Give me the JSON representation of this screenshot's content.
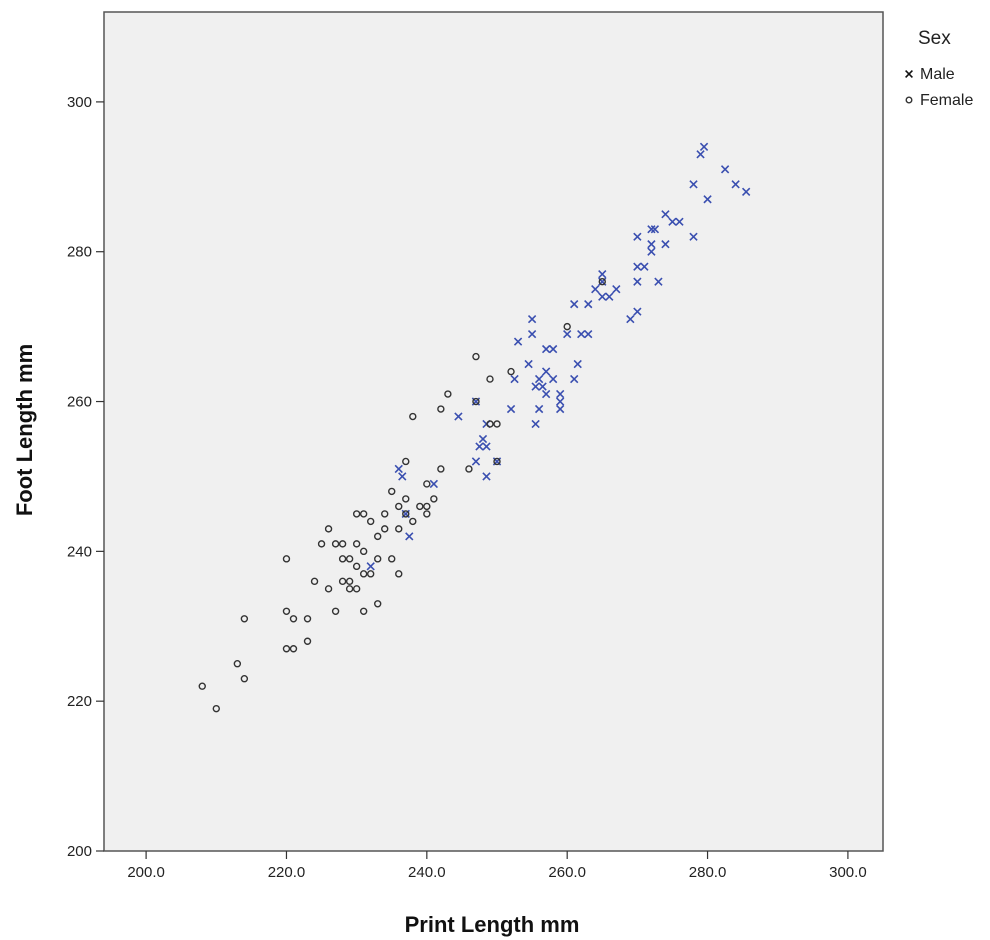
{
  "chart_data": {
    "type": "scatter",
    "xlabel": "Print Length mm",
    "ylabel": "Foot Length mm",
    "xlim": [
      194,
      305
    ],
    "ylim": [
      200,
      312
    ],
    "x_ticks": [
      200,
      220,
      240,
      260,
      280,
      300
    ],
    "x_tick_labels": [
      "200.0",
      "220.0",
      "240.0",
      "260.0",
      "280.0",
      "300.0"
    ],
    "y_ticks": [
      200,
      220,
      240,
      260,
      280,
      300
    ],
    "y_tick_labels": [
      "200",
      "220",
      "240",
      "260",
      "280",
      "300"
    ],
    "grid": false,
    "background_color": "#f0f0f0",
    "legend": {
      "title": "Sex",
      "position": "top-right, outside plot"
    },
    "series": [
      {
        "name": "Male",
        "marker": "x",
        "color": "#3a4fb0",
        "legend_color": "#111111",
        "points": [
          [
            279,
            293
          ],
          [
            279.5,
            294
          ],
          [
            282.5,
            291
          ],
          [
            284,
            289
          ],
          [
            285.5,
            288
          ],
          [
            280,
            287
          ],
          [
            278,
            289
          ],
          [
            274,
            285
          ],
          [
            275,
            284
          ],
          [
            276,
            284
          ],
          [
            272,
            283
          ],
          [
            272.5,
            283
          ],
          [
            270,
            282
          ],
          [
            274,
            281
          ],
          [
            272,
            281
          ],
          [
            272,
            280
          ],
          [
            278,
            282
          ],
          [
            270,
            278
          ],
          [
            271,
            278
          ],
          [
            270,
            276
          ],
          [
            273,
            276
          ],
          [
            265,
            277
          ],
          [
            265,
            276
          ],
          [
            264,
            275
          ],
          [
            267,
            275
          ],
          [
            266,
            274
          ],
          [
            265,
            274
          ],
          [
            261,
            273
          ],
          [
            263,
            273
          ],
          [
            270,
            272
          ],
          [
            269,
            271
          ],
          [
            260,
            269
          ],
          [
            262,
            269
          ],
          [
            263,
            269
          ],
          [
            255,
            271
          ],
          [
            255,
            269
          ],
          [
            253,
            268
          ],
          [
            257,
            267
          ],
          [
            258,
            267
          ],
          [
            254.5,
            265
          ],
          [
            261.5,
            265
          ],
          [
            257,
            264
          ],
          [
            252.5,
            263
          ],
          [
            256,
            263
          ],
          [
            258,
            263
          ],
          [
            261,
            263
          ],
          [
            255.5,
            262
          ],
          [
            256.5,
            262
          ],
          [
            257,
            261
          ],
          [
            259,
            261
          ],
          [
            259,
            260
          ],
          [
            252,
            259
          ],
          [
            256,
            259
          ],
          [
            259,
            259
          ],
          [
            255.5,
            257
          ],
          [
            247,
            260
          ],
          [
            244.5,
            258
          ],
          [
            248.5,
            257
          ],
          [
            248,
            255
          ],
          [
            247.5,
            254
          ],
          [
            248.5,
            254
          ],
          [
            247,
            252
          ],
          [
            248.5,
            250
          ],
          [
            250,
            252
          ],
          [
            236,
            251
          ],
          [
            236.5,
            250
          ],
          [
            241,
            249
          ],
          [
            237,
            245
          ],
          [
            237.5,
            242
          ],
          [
            232,
            238
          ]
        ]
      },
      {
        "name": "Female",
        "marker": "circle",
        "color": "#333333",
        "legend_color": "#333333",
        "points": [
          [
            265,
            276
          ],
          [
            260,
            270
          ],
          [
            247,
            266
          ],
          [
            252,
            264
          ],
          [
            249,
            263
          ],
          [
            243,
            261
          ],
          [
            247,
            260
          ],
          [
            242,
            259
          ],
          [
            238,
            258
          ],
          [
            249,
            257
          ],
          [
            250,
            257
          ],
          [
            250,
            252
          ],
          [
            237,
            252
          ],
          [
            246,
            251
          ],
          [
            242,
            251
          ],
          [
            235,
            248
          ],
          [
            240,
            249
          ],
          [
            241,
            247
          ],
          [
            237,
            247
          ],
          [
            240,
            246
          ],
          [
            239,
            246
          ],
          [
            240,
            245
          ],
          [
            236,
            246
          ],
          [
            230,
            245
          ],
          [
            231,
            245
          ],
          [
            234,
            245
          ],
          [
            237,
            245
          ],
          [
            238,
            244
          ],
          [
            232,
            244
          ],
          [
            236,
            243
          ],
          [
            234,
            243
          ],
          [
            226,
            243
          ],
          [
            227,
            241
          ],
          [
            228,
            241
          ],
          [
            230,
            241
          ],
          [
            225,
            241
          ],
          [
            231,
            240
          ],
          [
            233,
            242
          ],
          [
            220,
            239
          ],
          [
            228,
            239
          ],
          [
            229,
            239
          ],
          [
            235,
            239
          ],
          [
            233,
            239
          ],
          [
            230,
            238
          ],
          [
            232,
            237
          ],
          [
            231,
            237
          ],
          [
            236,
            237
          ],
          [
            224,
            236
          ],
          [
            228,
            236
          ],
          [
            229,
            236
          ],
          [
            229,
            235
          ],
          [
            230,
            235
          ],
          [
            226,
            235
          ],
          [
            227,
            232
          ],
          [
            231,
            232
          ],
          [
            233,
            233
          ],
          [
            220,
            232
          ],
          [
            223,
            231
          ],
          [
            214,
            231
          ],
          [
            221,
            231
          ],
          [
            223,
            228
          ],
          [
            220,
            227
          ],
          [
            221,
            227
          ],
          [
            213,
            225
          ],
          [
            214,
            223
          ],
          [
            208,
            222
          ],
          [
            210,
            219
          ]
        ]
      }
    ]
  }
}
